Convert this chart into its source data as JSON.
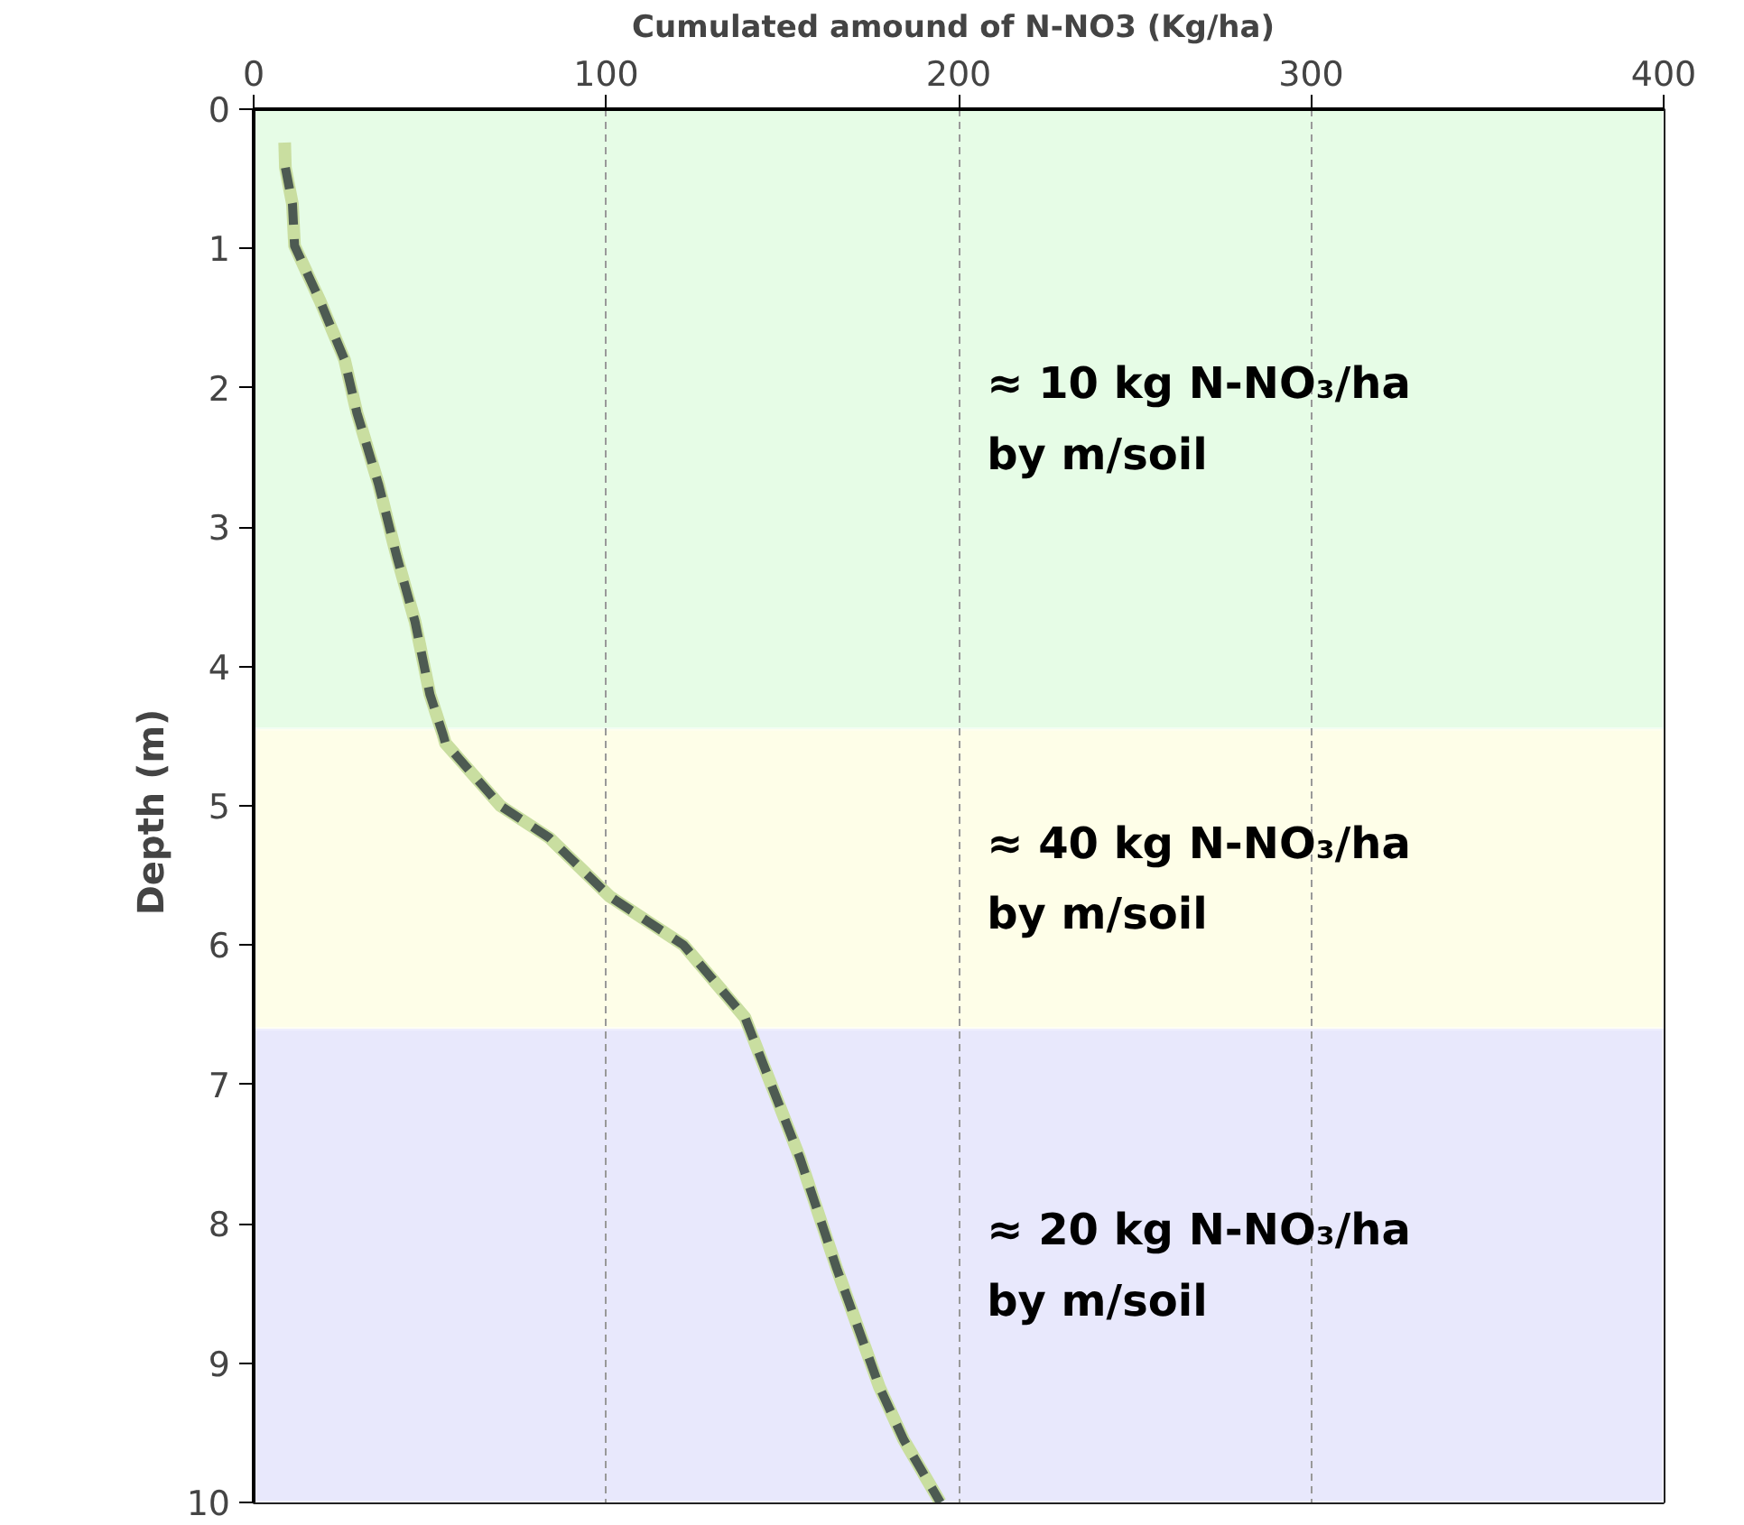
{
  "chart_data": {
    "type": "line",
    "xlabel": "Cumulated  amound of N-NO3 (Kg/ha)",
    "ylabel": "Depth  (m)",
    "xlim": [
      0,
      400
    ],
    "xticks": [
      0,
      100,
      200,
      300,
      400
    ],
    "ylim": [
      10,
      0
    ],
    "yticks": [
      0,
      1,
      2,
      3,
      4,
      5,
      6,
      7,
      8,
      9,
      10
    ],
    "grid": "x",
    "marker": "none",
    "series": [
      {
        "color": "#c9dea0",
        "line_style": "solid",
        "x": [
          8.8,
          9,
          11,
          11.6,
          18.9,
          25.8,
          29.3,
          35.4,
          40.6,
          45.8,
          50,
          53.6,
          54.4,
          70,
          83.9,
          101,
          122,
          139.4,
          155,
          165.4,
          177.5,
          184.4,
          194.8
        ],
        "values": [
          0.24,
          0.42,
          0.68,
          0.98,
          1.38,
          1.8,
          2.18,
          2.69,
          3.21,
          3.68,
          4.2,
          4.48,
          4.55,
          5.0,
          5.23,
          5.65,
          6.0,
          6.52,
          7.53,
          8.32,
          9.17,
          9.55,
          10.0
        ]
      },
      {
        "color": "#4d5a52",
        "line_style": "dashed",
        "x": [
          9,
          11,
          11.6,
          18.9,
          25.8,
          29.3,
          35.4,
          40.6,
          45.8,
          50,
          53.6,
          54.4,
          70,
          83.9,
          101,
          122,
          139.4,
          155,
          165.4,
          177.5,
          184.4,
          194.8
        ],
        "values": [
          0.42,
          0.68,
          0.98,
          1.38,
          1.8,
          2.18,
          2.69,
          3.21,
          3.68,
          4.2,
          4.48,
          4.55,
          5.0,
          5.23,
          5.65,
          6.0,
          6.52,
          7.53,
          8.32,
          9.17,
          9.55,
          10.0
        ]
      }
    ],
    "bands": [
      {
        "axis": "y",
        "from": 0,
        "to": 4.45,
        "color": "#e6fce6",
        "label": "≈ 10 kg  N-NO₃/ha\nby m/soil"
      },
      {
        "axis": "y",
        "from": 4.45,
        "to": 6.6,
        "color": "#fefee8",
        "label": "≈ 40 kg  N-NO₃/ha\nby m/soil"
      },
      {
        "axis": "y",
        "from": 6.6,
        "to": 10,
        "color": "#e8e8fc",
        "label": "≈ 20 kg  N-NO₃/ha\nby m/soil"
      }
    ]
  }
}
